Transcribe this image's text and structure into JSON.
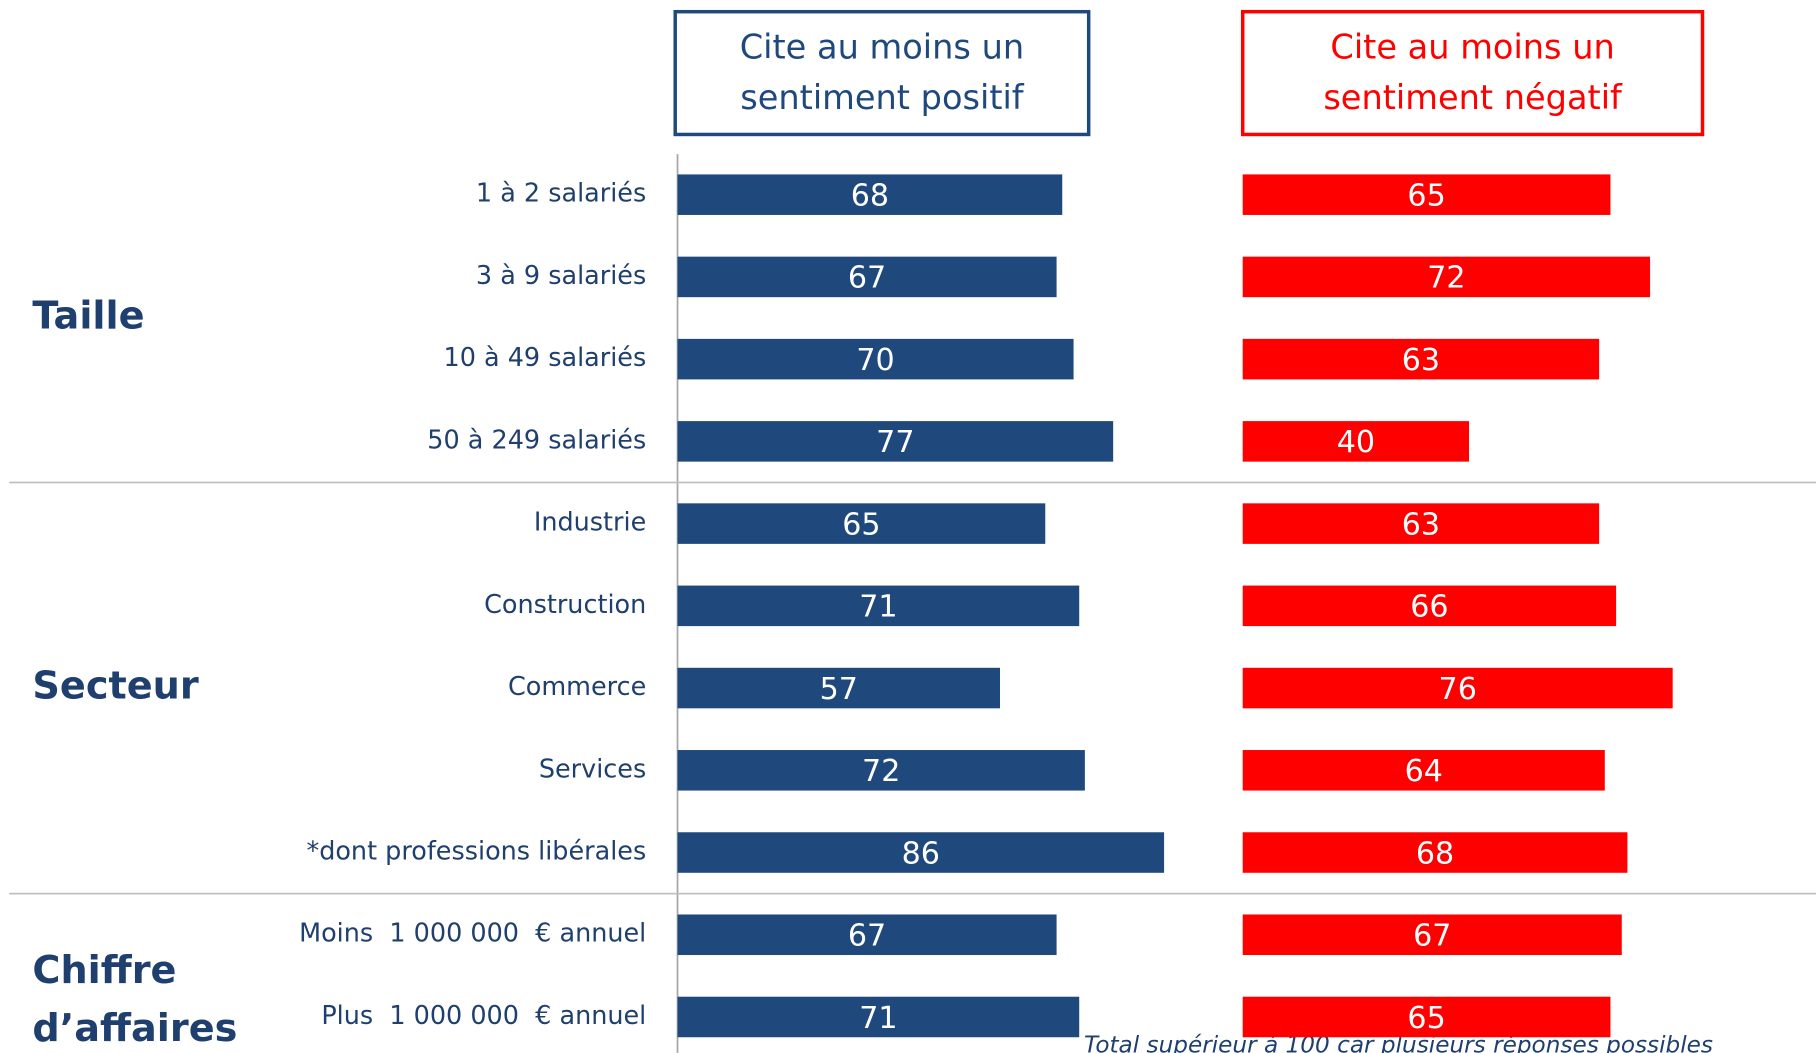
{
  "chart_data": {
    "type": "bar",
    "orientation": "horizontal",
    "categories": [
      "1 à 2 salariés",
      "3 à 9 salariés",
      "10 à 49 salariés",
      "50 à 249 salariés",
      "Industrie",
      "Construction",
      "Commerce",
      "Services",
      "*dont professions libérales",
      "Moins  1 000 000  € annuel",
      "Plus  1 000 000  € annuel"
    ],
    "groups": [
      {
        "label": [
          "Taille"
        ],
        "size": 4
      },
      {
        "label": [
          "Secteur"
        ],
        "size": 5
      },
      {
        "label": [
          "Chiffre",
          "d’affaires"
        ],
        "size": 2
      }
    ],
    "series": [
      {
        "name": [
          "Cite au moins un",
          "sentiment positif"
        ],
        "color": "#1f497d",
        "values": [
          68,
          67,
          70,
          77,
          65,
          71,
          57,
          72,
          86,
          67,
          71
        ]
      },
      {
        "name": [
          "Cite au moins un",
          "sentiment négatif"
        ],
        "color": "#ff0000",
        "values": [
          65,
          72,
          63,
          40,
          63,
          66,
          76,
          64,
          68,
          67,
          65
        ]
      }
    ],
    "note": "Total supérieur à 100 car plusieurs réponses possibles"
  }
}
